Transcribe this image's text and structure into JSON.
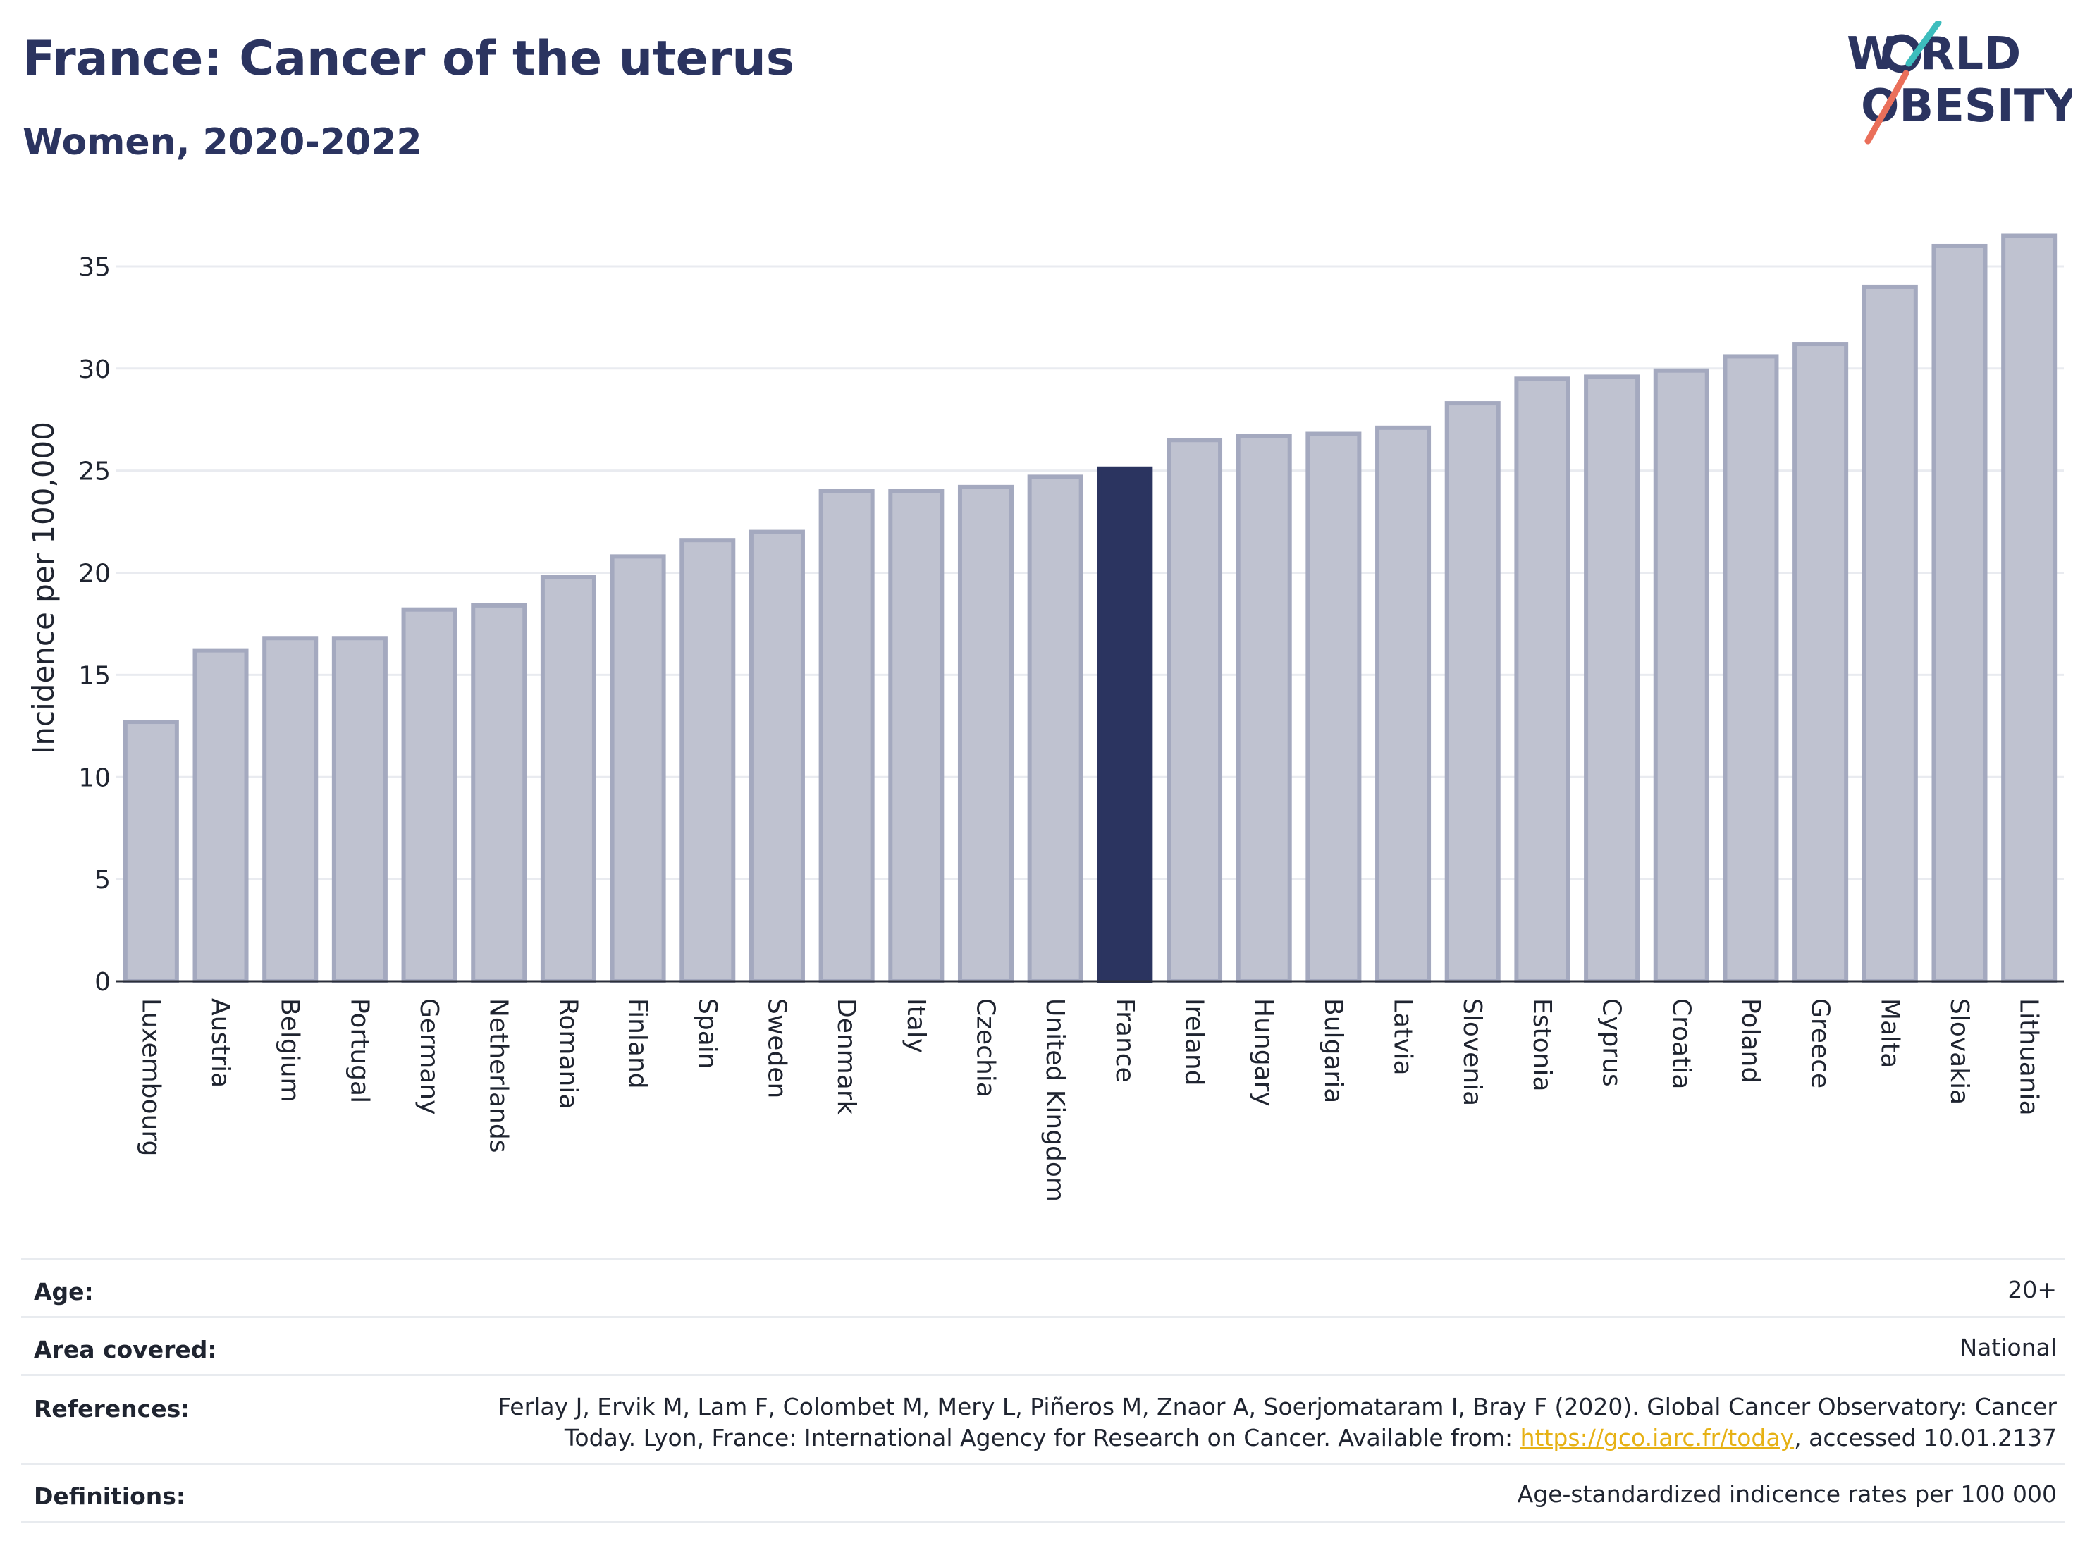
{
  "header": {
    "title": "France: Cancer of the uterus",
    "subtitle": "Women, 2020-2022",
    "logo_line1_left": "W",
    "logo_line1_right": "RLD",
    "logo_line2": "OBESITY"
  },
  "chart_data": {
    "type": "bar",
    "ylabel": "Incidence per 100,000",
    "xlabel": "",
    "ylim": [
      0,
      37
    ],
    "yticks": [
      0,
      5,
      10,
      15,
      20,
      25,
      30,
      35
    ],
    "grid": true,
    "highlight": "France",
    "colors": {
      "bar": "#bfc2d0",
      "bar_border": "#a4a9bf",
      "highlight": "#2b3460",
      "grid": "#e9ebf0"
    },
    "categories": [
      "Luxembourg",
      "Austria",
      "Belgium",
      "Portugal",
      "Germany",
      "Netherlands",
      "Romania",
      "Finland",
      "Spain",
      "Sweden",
      "Denmark",
      "Italy",
      "Czechia",
      "United Kingdom",
      "France",
      "Ireland",
      "Hungary",
      "Bulgaria",
      "Latvia",
      "Slovenia",
      "Estonia",
      "Cyprus",
      "Croatia",
      "Poland",
      "Greece",
      "Malta",
      "Slovakia",
      "Lithuania"
    ],
    "values": [
      12.7,
      16.2,
      16.8,
      16.8,
      18.2,
      18.4,
      19.8,
      20.8,
      21.6,
      22.0,
      24.0,
      24.0,
      24.2,
      24.7,
      25.1,
      26.5,
      26.7,
      26.8,
      27.1,
      28.3,
      29.5,
      29.6,
      29.9,
      30.6,
      31.2,
      34.0,
      36.0,
      36.5
    ]
  },
  "info": {
    "age_label": "Age:",
    "age_value": "20+",
    "area_label": "Area covered:",
    "area_value": "National",
    "references_label": "References:",
    "references_line1": "Ferlay J, Ervik M, Lam F, Colombet M, Mery L, Piñeros M, Znaor A, Soerjomataram I, Bray F (2020). Global Cancer Observatory: Cancer",
    "references_line2_pre": "Today. Lyon, France: International Agency for Research on Cancer. Available from: ",
    "references_link": "https://gco.iarc.fr/today",
    "references_line2_post": ", accessed 10.01.2137",
    "definitions_label": "Definitions:",
    "definitions_value": "Age-standardized indicence rates per 100 000"
  }
}
